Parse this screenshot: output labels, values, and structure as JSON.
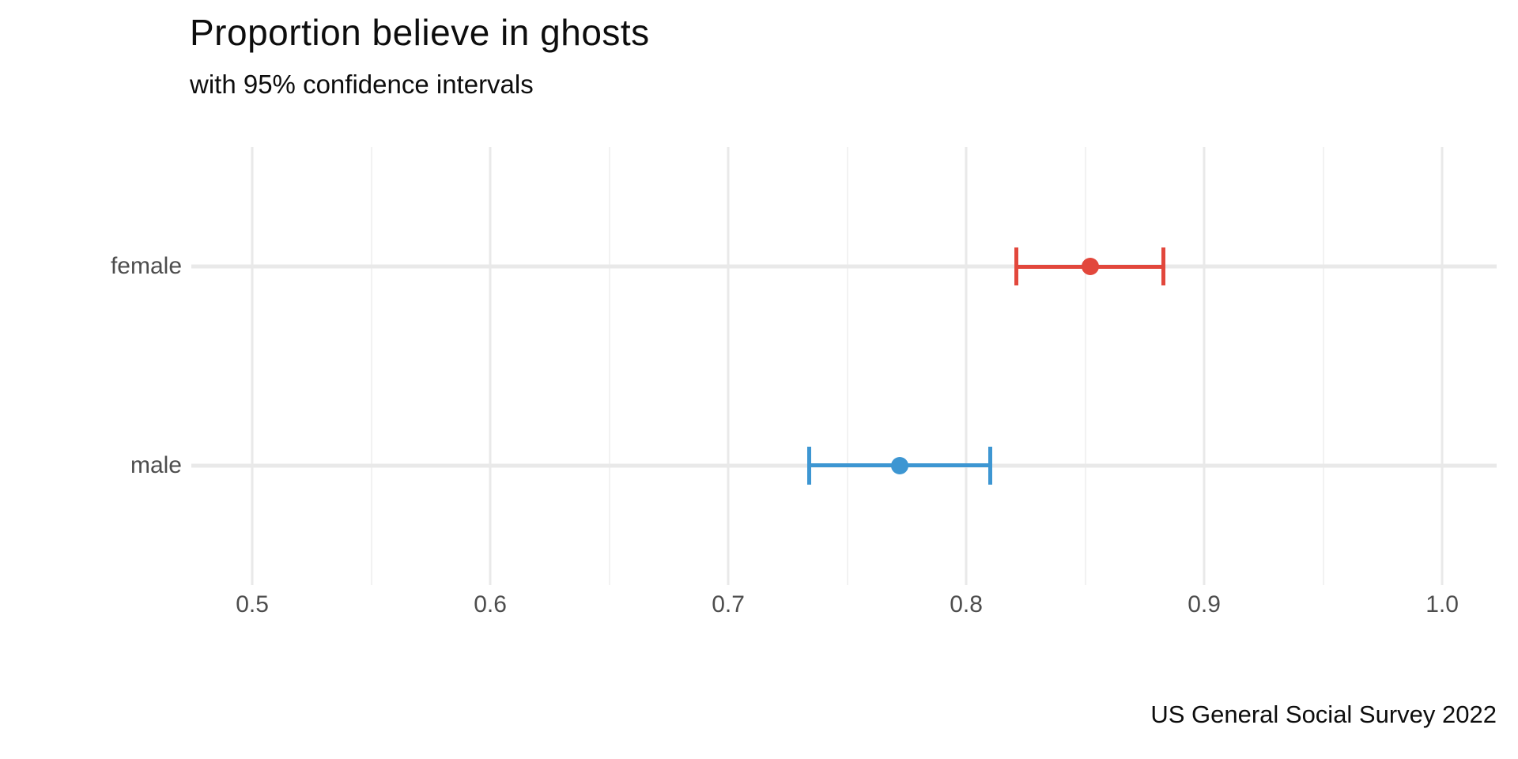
{
  "chart": {
    "title": "Proportion believe in ghosts",
    "subtitle": "with 95% confidence intervals",
    "caption": "US General Social Survey 2022"
  },
  "chart_data": {
    "type": "scatter",
    "subtype": "horizontal-pointrange",
    "title": "Proportion believe in ghosts",
    "subtitle": "with 95% confidence intervals",
    "caption": "US General Social Survey 2022",
    "categories": [
      "female",
      "male"
    ],
    "series": [
      {
        "name": "female",
        "estimate": 0.852,
        "ci_low": 0.821,
        "ci_high": 0.883,
        "color": "#E2473C"
      },
      {
        "name": "male",
        "estimate": 0.772,
        "ci_low": 0.734,
        "ci_high": 0.81,
        "color": "#3D96D2"
      }
    ],
    "xlabel": "",
    "ylabel": "",
    "xlim": [
      0.4744,
      1.0229
    ],
    "x_major_ticks": [
      0.5,
      0.6,
      0.7,
      0.8,
      0.9,
      1.0
    ],
    "x_major_labels": [
      "0.5",
      "0.6",
      "0.7",
      "0.8",
      "0.9",
      "1.0"
    ],
    "x_minor_ticks": [
      0.55,
      0.65,
      0.75,
      0.85,
      0.95
    ],
    "grid": "vertical major+minor gridlines, horizontal gridline per category, no axis lines",
    "legend": "none",
    "background_color": "#FFFFFF",
    "grid_major_color": "#E9E9E9",
    "grid_minor_color": "#F2F2F2",
    "axis_text_color": "#4D4D4D",
    "text_color": "#0D0D0D"
  }
}
